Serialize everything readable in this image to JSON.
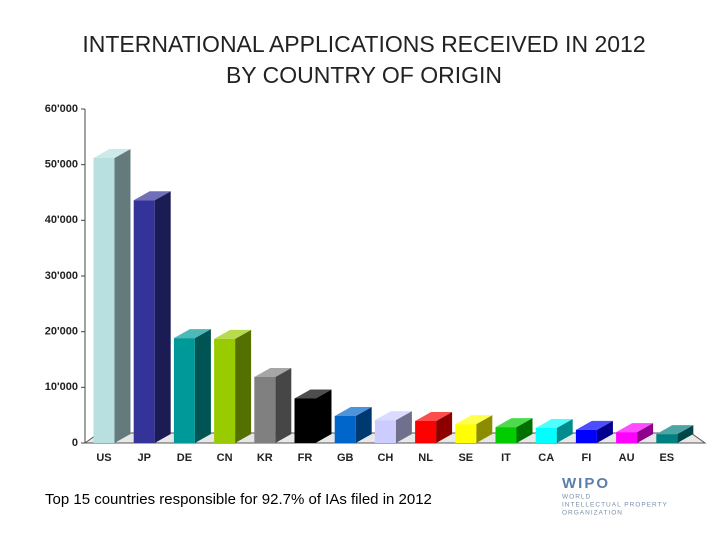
{
  "chart_data": {
    "type": "bar3d",
    "title": [
      "INTERNATIONAL APPLICATIONS RECEIVED IN 2012",
      "BY COUNTRY OF ORIGIN"
    ],
    "categories": [
      "US",
      "JP",
      "DE",
      "CN",
      "KR",
      "FR",
      "GB",
      "CH",
      "NL",
      "SE",
      "IT",
      "CA",
      "FI",
      "AU",
      "ES"
    ],
    "values": [
      51200,
      43600,
      18850,
      18700,
      11850,
      8000,
      4850,
      4100,
      3950,
      3400,
      2850,
      2700,
      2350,
      1950,
      1600
    ],
    "colors": [
      "#b8e0e0",
      "#333399",
      "#009999",
      "#99cc00",
      "#808080",
      "#000000",
      "#0066cc",
      "#ccccff",
      "#ff0000",
      "#ffff00",
      "#00cc00",
      "#00ffff",
      "#0000ff",
      "#ff00ff",
      "#008080"
    ],
    "ylim": [
      0,
      60000
    ],
    "yticks": [
      0,
      {
        "value": 10000,
        "label": "10'000"
      },
      {
        "value": 20000,
        "label": "20'000"
      },
      {
        "value": 30000,
        "label": "30'000"
      },
      {
        "value": 40000,
        "label": "40'000"
      },
      {
        "value": 50000,
        "label": "50'000"
      },
      {
        "value": 60000,
        "label": "60'000"
      }
    ],
    "grid": false
  },
  "footnote": "Top 15 countries responsible for 92.7% of IAs filed in 2012",
  "logo": {
    "name": "WIPO",
    "lines": [
      "WORLD",
      "INTELLECTUAL PROPERTY",
      "ORGANIZATION"
    ]
  }
}
